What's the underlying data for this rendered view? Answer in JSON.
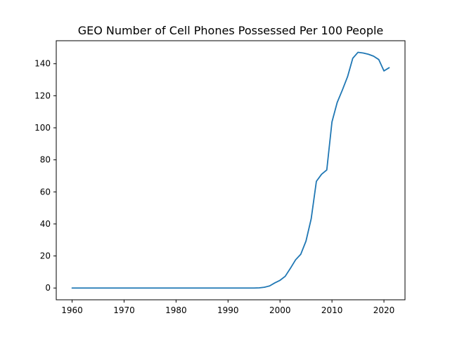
{
  "chart_data": {
    "type": "line",
    "title": "GEO Number of Cell Phones Possessed Per 100 People",
    "xlabel": "",
    "ylabel": "",
    "xlim": [
      1956.95,
      2024.05
    ],
    "ylim": [
      -7.35,
      154.35
    ],
    "xticks": [
      1960,
      1970,
      1980,
      1990,
      2000,
      2010,
      2020
    ],
    "yticks": [
      0,
      20,
      40,
      60,
      80,
      100,
      120,
      140
    ],
    "grid": false,
    "legend": "none",
    "colors": {
      "line": "#1f77b4",
      "axes": "#000000",
      "background": "#ffffff"
    },
    "series": [
      {
        "x": [
          1960,
          1961,
          1962,
          1963,
          1964,
          1965,
          1966,
          1967,
          1968,
          1969,
          1970,
          1971,
          1972,
          1973,
          1974,
          1975,
          1976,
          1977,
          1978,
          1979,
          1980,
          1981,
          1982,
          1983,
          1984,
          1985,
          1986,
          1987,
          1988,
          1989,
          1990,
          1991,
          1992,
          1993,
          1994,
          1995,
          1996,
          1997,
          1998,
          1999,
          2000,
          2001,
          2002,
          2003,
          2004,
          2005,
          2006,
          2007,
          2008,
          2009,
          2010,
          2011,
          2012,
          2013,
          2014,
          2015,
          2016,
          2017,
          2018,
          2019,
          2020,
          2021
        ],
        "values": [
          0,
          0,
          0,
          0,
          0,
          0,
          0,
          0,
          0,
          0,
          0,
          0,
          0,
          0,
          0,
          0,
          0,
          0,
          0,
          0,
          0,
          0,
          0,
          0,
          0,
          0,
          0,
          0,
          0,
          0,
          0,
          0,
          0,
          0,
          0,
          0,
          0.1,
          0.5,
          1.3,
          3.2,
          4.8,
          7.3,
          12.3,
          17.6,
          21.1,
          29.3,
          43.2,
          66.6,
          71.0,
          73.7,
          103.7,
          115.8,
          123.6,
          131.9,
          143.4,
          147.1,
          146.7,
          145.9,
          144.7,
          142.6,
          135.5,
          137.5
        ]
      }
    ]
  }
}
